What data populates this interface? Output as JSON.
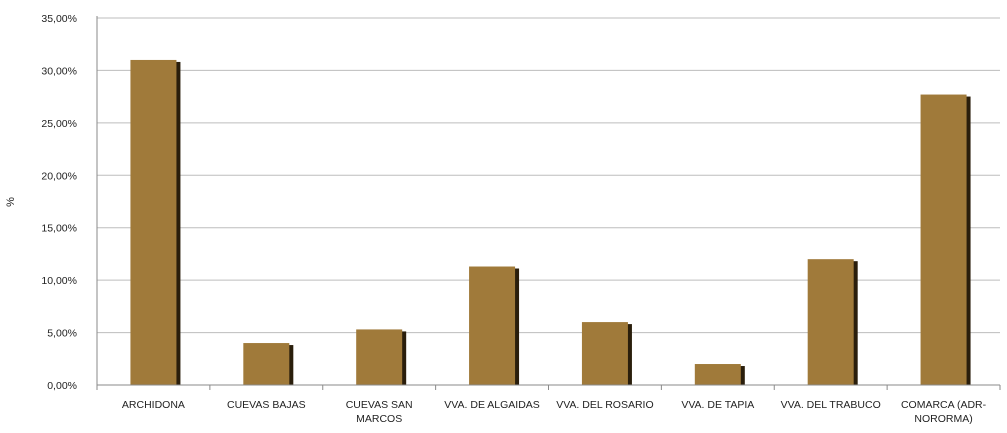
{
  "chart_data": {
    "type": "bar",
    "title": "",
    "xlabel": "",
    "ylabel": "%",
    "ylim": [
      0,
      35
    ],
    "yticks": [
      "0,00%",
      "5,00%",
      "10,00%",
      "15,00%",
      "20,00%",
      "25,00%",
      "30,00%",
      "35,00%"
    ],
    "categories": [
      [
        "ARCHIDONA"
      ],
      [
        "CUEVAS BAJAS"
      ],
      [
        "CUEVAS SAN",
        "MARCOS"
      ],
      [
        "VVA. DE ALGAIDAS"
      ],
      [
        "VVA. DEL ROSARIO"
      ],
      [
        "VVA. DE TAPIA"
      ],
      [
        "VVA. DEL TRABUCO"
      ],
      [
        "COMARCA (ADR-",
        "NORORMA)"
      ]
    ],
    "values": [
      31.0,
      4.0,
      5.3,
      11.3,
      6.0,
      2.0,
      12.0,
      27.7
    ],
    "grid": true,
    "legend": "none",
    "colors": {
      "bar": "#a07a3a",
      "bar_shadow": "#2a1e0c",
      "grid": "#bdbdbd",
      "axis": "#8a8a8a"
    }
  }
}
